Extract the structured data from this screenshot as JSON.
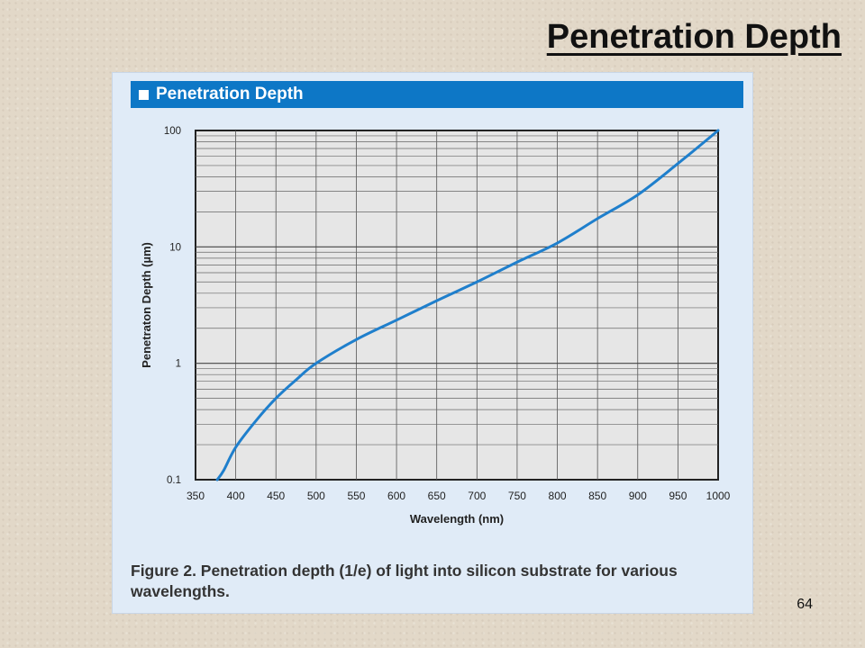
{
  "slide": {
    "title": "Penetration Depth",
    "page_number": "64"
  },
  "panel": {
    "header": "Penetration Depth",
    "caption": "Figure 2. Penetration depth (1/e) of light into silicon substrate for various wavelengths."
  },
  "colors": {
    "panel_header": "#0d77c6",
    "panel_bg": "#e0ebf7",
    "plot_bg": "#e6e6e6",
    "curve": "#1f7fcc"
  },
  "chart_data": {
    "type": "line",
    "title": "Penetration Depth",
    "xlabel": "Wavelength (nm)",
    "ylabel": "Penetraton Depth (µm)",
    "xlim": [
      350,
      1000
    ],
    "ylim": [
      0.1,
      100
    ],
    "yscale": "log",
    "grid": true,
    "legend": "none",
    "x_ticks": [
      "350",
      "400",
      "450",
      "500",
      "550",
      "600",
      "650",
      "700",
      "750",
      "800",
      "850",
      "900",
      "950",
      "1000"
    ],
    "y_ticks": [
      "0.1",
      "1",
      "10",
      "100"
    ],
    "series": [
      {
        "x": [
          377,
          385,
          400,
          425,
          450,
          475,
          500,
          550,
          600,
          650,
          700,
          750,
          800,
          850,
          900,
          950,
          1000
        ],
        "y": [
          0.1,
          0.12,
          0.19,
          0.32,
          0.5,
          0.72,
          1.0,
          1.6,
          2.35,
          3.45,
          5.0,
          7.4,
          10.8,
          17.5,
          28,
          52,
          100
        ]
      }
    ]
  }
}
